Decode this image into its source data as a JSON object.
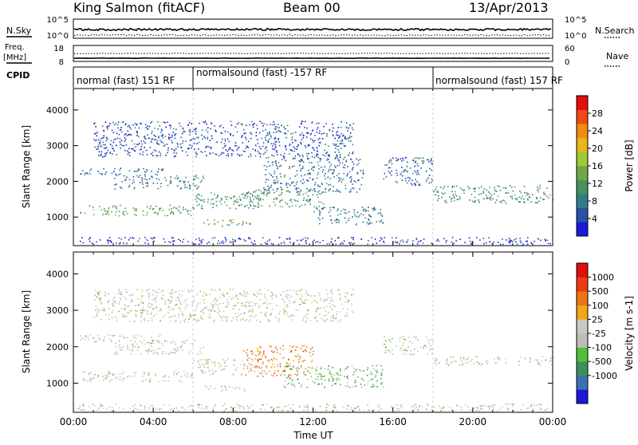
{
  "header": {
    "site": "King Salmon (fitACF)",
    "beam": "Beam 00",
    "date": "13/Apr/2013"
  },
  "nsky_panel": {
    "left_label": "N.Sky",
    "left_ticks": [
      "10^5",
      "10^0"
    ],
    "right_label": "N.Search",
    "right_ticks": [
      "10^5",
      "10^0"
    ]
  },
  "freq_panel": {
    "left_label_line1": "Freq.",
    "left_label_line2": "[MHz]",
    "left_ticks": [
      "18",
      "8"
    ],
    "right_label": "Nave",
    "right_ticks": [
      "60",
      "0"
    ]
  },
  "cpid_panel": {
    "label": "CPID",
    "segments": [
      {
        "text": "normal (fast) 151 RF",
        "start_hour": 0,
        "end_hour": 6
      },
      {
        "text": "normalsound (fast) -157 RF",
        "start_hour": 6,
        "end_hour": 18
      },
      {
        "text": "normalsound (fast) 157 RF",
        "start_hour": 18,
        "end_hour": 24
      }
    ]
  },
  "chart_data": [
    {
      "type": "heatmap",
      "quantity": "Power",
      "xlabel": "",
      "ylabel": "Slant Range [km]",
      "xlim_hours": [
        0,
        24
      ],
      "ylim_km": [
        200,
        4600
      ],
      "y_ticks": [
        1000,
        2000,
        3000,
        4000
      ],
      "colorbar": {
        "label": "Power [dB]",
        "range": [
          0,
          32
        ],
        "ticks": [
          "4",
          "8",
          "12",
          "16",
          "20",
          "24",
          "28"
        ],
        "colors": [
          "#1b1bd6",
          "#2a52a6",
          "#2e7e8a",
          "#49915c",
          "#6fa84a",
          "#9ccb37",
          "#e8b51a",
          "#f28a16",
          "#ef4a14",
          "#e30e0e"
        ]
      },
      "scatter_regions": [
        {
          "t0": 0.3,
          "t1": 6.0,
          "r0": 1050,
          "r1": 1350,
          "level": 3.4
        },
        {
          "t0": 0.3,
          "t1": 4.5,
          "r0": 2200,
          "r1": 2400,
          "level": 1.5
        },
        {
          "t0": 2.0,
          "t1": 6.5,
          "r0": 1800,
          "r1": 2200,
          "level": 2.0
        },
        {
          "t0": 6.0,
          "t1": 9.5,
          "r0": 1250,
          "r1": 1700,
          "level": 3.0
        },
        {
          "t0": 6.5,
          "t1": 9.0,
          "r0": 750,
          "r1": 950,
          "level": 4.0
        },
        {
          "t0": 8.5,
          "t1": 12.5,
          "r0": 1300,
          "r1": 1800,
          "level": 3.0
        },
        {
          "t0": 9.5,
          "t1": 14.5,
          "r0": 1700,
          "r1": 2700,
          "level": 1.6
        },
        {
          "t0": 12.0,
          "t1": 15.5,
          "r0": 800,
          "r1": 1300,
          "level": 2.0
        },
        {
          "t0": 15.5,
          "t1": 18.0,
          "r0": 1900,
          "r1": 2700,
          "level": 1.4
        },
        {
          "t0": 18.0,
          "t1": 24.0,
          "r0": 1400,
          "r1": 1900,
          "level": 2.6
        },
        {
          "t0": 1.0,
          "t1": 14.0,
          "r0": 2700,
          "r1": 3700,
          "level": 0.8
        },
        {
          "t0": 0.2,
          "t1": 24.0,
          "r0": 250,
          "r1": 450,
          "level": 0.5
        }
      ]
    },
    {
      "type": "heatmap",
      "quantity": "Velocity",
      "xlabel": "Time UT",
      "ylabel": "Slant Range [km]",
      "xlim_hours": [
        0,
        24
      ],
      "ylim_km": [
        200,
        4600
      ],
      "x_ticks": [
        "00:00",
        "04:00",
        "08:00",
        "12:00",
        "16:00",
        "20:00",
        "00:00"
      ],
      "y_ticks": [
        1000,
        2000,
        3000,
        4000
      ],
      "colorbar": {
        "label": "Velocity [m s-1]",
        "ticks": [
          "1000",
          "500",
          "100",
          "25",
          "-25",
          "-100",
          "-500",
          "-1000"
        ],
        "colors": [
          "#1b1bd6",
          "#3d6fb5",
          "#3e8f5e",
          "#4fbf3c",
          "#bdbdb5",
          "#c9c9c2",
          "#f2a61a",
          "#f07415",
          "#ec3a14",
          "#e00e0e"
        ]
      },
      "scatter_regions": [
        {
          "t0": 0.3,
          "t1": 6.0,
          "r0": 1050,
          "r1": 1350,
          "level": 4.5
        },
        {
          "t0": 0.3,
          "t1": 4.5,
          "r0": 2150,
          "r1": 2350,
          "level": 4.5
        },
        {
          "t0": 2.0,
          "t1": 6.5,
          "r0": 1800,
          "r1": 2200,
          "level": 4.5
        },
        {
          "t0": 6.0,
          "t1": 9.5,
          "r0": 1250,
          "r1": 1700,
          "level": 4.6
        },
        {
          "t0": 6.5,
          "t1": 9.0,
          "r0": 800,
          "r1": 950,
          "level": 4.5
        },
        {
          "t0": 8.5,
          "t1": 12.0,
          "r0": 1200,
          "r1": 2050,
          "level": 6.5
        },
        {
          "t0": 10.5,
          "t1": 15.5,
          "r0": 900,
          "r1": 1500,
          "level": 3.0
        },
        {
          "t0": 15.5,
          "t1": 18.0,
          "r0": 1800,
          "r1": 2300,
          "level": 4.5
        },
        {
          "t0": 18.0,
          "t1": 24.0,
          "r0": 1500,
          "r1": 1750,
          "level": 4.5
        },
        {
          "t0": 1.0,
          "t1": 14.0,
          "r0": 2700,
          "r1": 3600,
          "level": 4.5
        },
        {
          "t0": 0.2,
          "t1": 24.0,
          "r0": 250,
          "r1": 450,
          "level": 4.5
        }
      ]
    }
  ]
}
